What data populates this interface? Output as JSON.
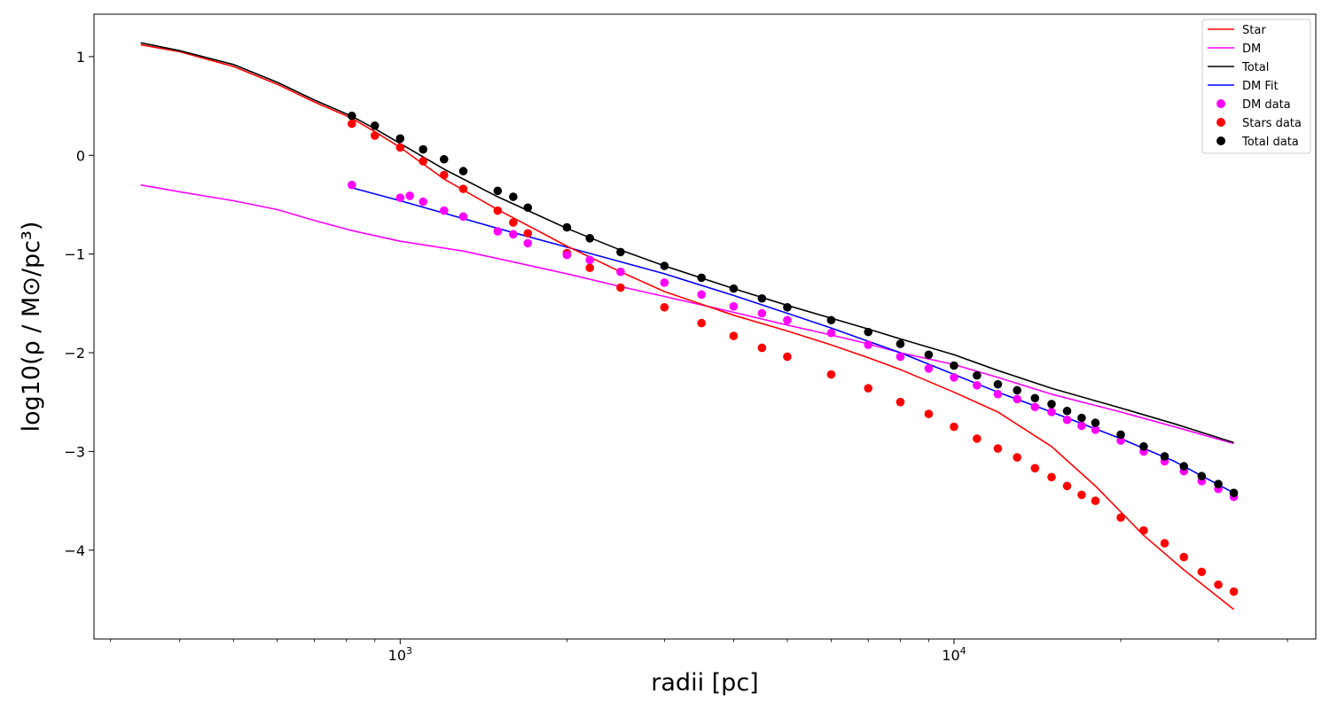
{
  "chart_data": {
    "type": "line",
    "title": "",
    "xlabel": "radii [pc]",
    "ylabel": "log10(ρ / M⊙/pc³)",
    "xscale": "log",
    "xlim": [
      280,
      45000
    ],
    "ylim": [
      -4.9,
      1.43
    ],
    "grid": false,
    "legend_position": "top-right",
    "x_major_ticks": [
      {
        "value": 1000,
        "base": "10",
        "exp": "3"
      },
      {
        "value": 10000,
        "base": "10",
        "exp": "4"
      }
    ],
    "y_ticks": [
      {
        "value": 1,
        "label": "1"
      },
      {
        "value": 0,
        "label": "0"
      },
      {
        "value": -1,
        "label": "−1"
      },
      {
        "value": -2,
        "label": "−2"
      },
      {
        "value": -3,
        "label": "−3"
      },
      {
        "value": -4,
        "label": "−4"
      }
    ],
    "series": [
      {
        "name": "Star",
        "kind": "line",
        "color": "#ff0000",
        "points": [
          [
            340,
            1.12
          ],
          [
            400,
            1.05
          ],
          [
            500,
            0.9
          ],
          [
            600,
            0.72
          ],
          [
            700,
            0.54
          ],
          [
            815,
            0.38
          ],
          [
            900,
            0.24
          ],
          [
            1000,
            0.08
          ],
          [
            1200,
            -0.24
          ],
          [
            1500,
            -0.55
          ],
          [
            2000,
            -0.92
          ],
          [
            2500,
            -1.18
          ],
          [
            3000,
            -1.38
          ],
          [
            4000,
            -1.62
          ],
          [
            5000,
            -1.78
          ],
          [
            6000,
            -1.92
          ],
          [
            7000,
            -2.05
          ],
          [
            8000,
            -2.17
          ],
          [
            10000,
            -2.4
          ],
          [
            12000,
            -2.6
          ],
          [
            15000,
            -2.95
          ],
          [
            18000,
            -3.35
          ],
          [
            22000,
            -3.85
          ],
          [
            26000,
            -4.2
          ],
          [
            32000,
            -4.6
          ]
        ]
      },
      {
        "name": "DM",
        "kind": "line",
        "color": "#ff00ff",
        "points": [
          [
            340,
            -0.3
          ],
          [
            400,
            -0.37
          ],
          [
            500,
            -0.46
          ],
          [
            600,
            -0.55
          ],
          [
            700,
            -0.66
          ],
          [
            815,
            -0.76
          ],
          [
            1000,
            -0.87
          ],
          [
            1300,
            -0.97
          ],
          [
            1600,
            -1.08
          ],
          [
            2000,
            -1.2
          ],
          [
            2500,
            -1.33
          ],
          [
            3000,
            -1.43
          ],
          [
            4000,
            -1.59
          ],
          [
            5000,
            -1.72
          ],
          [
            6000,
            -1.82
          ],
          [
            7000,
            -1.91
          ],
          [
            8000,
            -2.0
          ],
          [
            10000,
            -2.12
          ],
          [
            12000,
            -2.25
          ],
          [
            15000,
            -2.42
          ],
          [
            20000,
            -2.6
          ],
          [
            25000,
            -2.75
          ],
          [
            32000,
            -2.92
          ]
        ]
      },
      {
        "name": "Total",
        "kind": "line",
        "color": "#000000",
        "points": [
          [
            340,
            1.14
          ],
          [
            400,
            1.06
          ],
          [
            500,
            0.92
          ],
          [
            600,
            0.74
          ],
          [
            700,
            0.56
          ],
          [
            815,
            0.4
          ],
          [
            900,
            0.27
          ],
          [
            1000,
            0.12
          ],
          [
            1200,
            -0.14
          ],
          [
            1500,
            -0.42
          ],
          [
            2000,
            -0.74
          ],
          [
            2500,
            -0.96
          ],
          [
            3000,
            -1.12
          ],
          [
            4000,
            -1.35
          ],
          [
            5000,
            -1.52
          ],
          [
            6000,
            -1.65
          ],
          [
            7000,
            -1.76
          ],
          [
            8000,
            -1.86
          ],
          [
            10000,
            -2.02
          ],
          [
            12000,
            -2.18
          ],
          [
            15000,
            -2.36
          ],
          [
            20000,
            -2.56
          ],
          [
            25000,
            -2.72
          ],
          [
            32000,
            -2.91
          ]
        ]
      },
      {
        "name": "DM Fit",
        "kind": "line",
        "color": "#0000ff",
        "points": [
          [
            820,
            -0.33
          ],
          [
            1000,
            -0.46
          ],
          [
            1500,
            -0.74
          ],
          [
            2000,
            -0.93
          ],
          [
            3000,
            -1.2
          ],
          [
            4000,
            -1.42
          ],
          [
            5000,
            -1.6
          ],
          [
            6000,
            -1.75
          ],
          [
            8000,
            -2.0
          ],
          [
            10000,
            -2.22
          ],
          [
            12000,
            -2.4
          ],
          [
            15000,
            -2.6
          ],
          [
            20000,
            -2.87
          ],
          [
            25000,
            -3.1
          ],
          [
            32000,
            -3.42
          ]
        ]
      },
      {
        "name": "DM data",
        "kind": "scatter",
        "color": "#ff00ff",
        "points": [
          [
            818,
            -0.3
          ],
          [
            1000,
            -0.43
          ],
          [
            1041,
            -0.41
          ],
          [
            1100,
            -0.47
          ],
          [
            1200,
            -0.56
          ],
          [
            1300,
            -0.62
          ],
          [
            1500,
            -0.77
          ],
          [
            1600,
            -0.8
          ],
          [
            1700,
            -0.89
          ],
          [
            2000,
            -1.01
          ],
          [
            2200,
            -1.06
          ],
          [
            2500,
            -1.18
          ],
          [
            3000,
            -1.29
          ],
          [
            3500,
            -1.41
          ],
          [
            4000,
            -1.53
          ],
          [
            4500,
            -1.6
          ],
          [
            5000,
            -1.67
          ],
          [
            6000,
            -1.8
          ],
          [
            7000,
            -1.92
          ],
          [
            8000,
            -2.04
          ],
          [
            9000,
            -2.16
          ],
          [
            10000,
            -2.25
          ],
          [
            11000,
            -2.33
          ],
          [
            12000,
            -2.42
          ],
          [
            13000,
            -2.47
          ],
          [
            14000,
            -2.55
          ],
          [
            15000,
            -2.6
          ],
          [
            16000,
            -2.68
          ],
          [
            17000,
            -2.74
          ],
          [
            18000,
            -2.78
          ],
          [
            20000,
            -2.89
          ],
          [
            22000,
            -3.0
          ],
          [
            24000,
            -3.1
          ],
          [
            26000,
            -3.2
          ],
          [
            28000,
            -3.3
          ],
          [
            30000,
            -3.38
          ],
          [
            32000,
            -3.46
          ]
        ]
      },
      {
        "name": "Stars data",
        "kind": "scatter",
        "color": "#ff0000",
        "points": [
          [
            818,
            0.32
          ],
          [
            900,
            0.2
          ],
          [
            1000,
            0.08
          ],
          [
            1100,
            -0.06
          ],
          [
            1200,
            -0.2
          ],
          [
            1300,
            -0.34
          ],
          [
            1500,
            -0.56
          ],
          [
            1600,
            -0.68
          ],
          [
            1700,
            -0.79
          ],
          [
            2000,
            -0.99
          ],
          [
            2200,
            -1.14
          ],
          [
            2500,
            -1.34
          ],
          [
            3000,
            -1.54
          ],
          [
            3500,
            -1.7
          ],
          [
            4000,
            -1.83
          ],
          [
            4500,
            -1.95
          ],
          [
            5000,
            -2.04
          ],
          [
            6000,
            -2.22
          ],
          [
            7000,
            -2.36
          ],
          [
            8000,
            -2.5
          ],
          [
            9000,
            -2.62
          ],
          [
            10000,
            -2.75
          ],
          [
            11000,
            -2.87
          ],
          [
            12000,
            -2.97
          ],
          [
            13000,
            -3.06
          ],
          [
            14000,
            -3.17
          ],
          [
            15000,
            -3.26
          ],
          [
            16000,
            -3.35
          ],
          [
            17000,
            -3.44
          ],
          [
            18000,
            -3.5
          ],
          [
            20000,
            -3.67
          ],
          [
            22000,
            -3.8
          ],
          [
            24000,
            -3.93
          ],
          [
            26000,
            -4.07
          ],
          [
            28000,
            -4.22
          ],
          [
            30000,
            -4.35
          ],
          [
            32000,
            -4.42
          ]
        ]
      },
      {
        "name": "Total data",
        "kind": "scatter",
        "color": "#000000",
        "points": [
          [
            818,
            0.4
          ],
          [
            900,
            0.3
          ],
          [
            1000,
            0.17
          ],
          [
            1100,
            0.06
          ],
          [
            1200,
            -0.04
          ],
          [
            1300,
            -0.16
          ],
          [
            1500,
            -0.36
          ],
          [
            1600,
            -0.42
          ],
          [
            1700,
            -0.53
          ],
          [
            2000,
            -0.73
          ],
          [
            2200,
            -0.84
          ],
          [
            2500,
            -0.98
          ],
          [
            3000,
            -1.12
          ],
          [
            3500,
            -1.24
          ],
          [
            4000,
            -1.35
          ],
          [
            4500,
            -1.45
          ],
          [
            5000,
            -1.54
          ],
          [
            6000,
            -1.67
          ],
          [
            7000,
            -1.79
          ],
          [
            8000,
            -1.91
          ],
          [
            9000,
            -2.02
          ],
          [
            10000,
            -2.13
          ],
          [
            11000,
            -2.23
          ],
          [
            12000,
            -2.32
          ],
          [
            13000,
            -2.38
          ],
          [
            14000,
            -2.46
          ],
          [
            15000,
            -2.52
          ],
          [
            16000,
            -2.59
          ],
          [
            17000,
            -2.66
          ],
          [
            18000,
            -2.71
          ],
          [
            20000,
            -2.83
          ],
          [
            22000,
            -2.95
          ],
          [
            24000,
            -3.05
          ],
          [
            26000,
            -3.15
          ],
          [
            28000,
            -3.25
          ],
          [
            30000,
            -3.33
          ],
          [
            32000,
            -3.42
          ]
        ]
      }
    ]
  }
}
